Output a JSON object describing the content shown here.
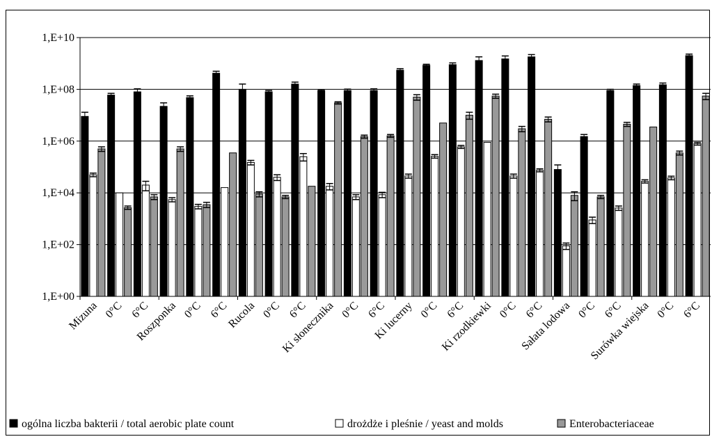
{
  "chart_data": {
    "type": "bar",
    "yscale": "log",
    "ylim": [
      1,
      10000000000
    ],
    "y_ticks": [
      "1,E+00",
      "1,E+02",
      "1,E+04",
      "1,E+06",
      "1,E+08",
      "1,E+10"
    ],
    "y_tick_values": [
      1,
      100,
      10000,
      1000000,
      100000000,
      10000000000
    ],
    "grid": "horizontal major lines",
    "legend_position": "bottom",
    "groups": [
      "Mizuna",
      "Roszponka",
      "Rucola",
      "Ki słonecznika",
      "Ki lucerny",
      "Ki rzodkiewki",
      "Sałata lodowa",
      "Surówka wiejska"
    ],
    "timepoints": [
      "",
      "0°C",
      "6°C"
    ],
    "series": [
      {
        "name": "ogólna liczba bakterii / total aerobic plate count",
        "color": "#000000",
        "values": [
          [
            9000000.0,
            60000000.0,
            80000000.0
          ],
          [
            22000000.0,
            48000000.0,
            420000000.0
          ],
          [
            100000000.0,
            80000000.0,
            160000000.0
          ],
          [
            90000000.0,
            90000000.0,
            90000000.0
          ],
          [
            550000000.0,
            850000000.0,
            900000000.0
          ],
          [
            1300000000.0,
            1500000000.0,
            1800000000.0
          ],
          [
            80000.0,
            1500000.0,
            90000000.0
          ],
          [
            140000000.0,
            150000000.0,
            2000000000.0
          ]
        ],
        "errors": [
          [
            4000000.0,
            10000000.0,
            25000000.0
          ],
          [
            8000000.0,
            8000000.0,
            80000000.0
          ],
          [
            60000000.0,
            10000000.0,
            30000000.0
          ],
          [
            8000000.0,
            12000000.0,
            15000000.0
          ],
          [
            80000000.0,
            80000000.0,
            150000000.0
          ],
          [
            500000000.0,
            450000000.0,
            400000000.0
          ],
          [
            40000.0,
            300000.0,
            10000000.0
          ],
          [
            20000000.0,
            25000000.0,
            300000000.0
          ]
        ]
      },
      {
        "name": "drożdże i pleśnie / yeast and molds",
        "color": "#ffffff",
        "values": [
          [
            50000.0,
            10000.0,
            20000.0
          ],
          [
            5500.0,
            3000.0,
            16000.0
          ],
          [
            150000.0,
            40000.0,
            250000.0
          ],
          [
            18000.0,
            7000.0,
            8500.0
          ],
          [
            45000.0,
            260000.0,
            600000.0
          ],
          [
            900000.0,
            45000.0,
            75000.0
          ],
          [
            90,
            900,
            2600.0
          ],
          [
            28000.0,
            38000.0,
            800000.0
          ]
        ],
        "errors": [
          [
            8000.0,
            0,
            8000.0
          ],
          [
            1000.0,
            600.0,
            0
          ],
          [
            30000.0,
            10000.0,
            80000.0
          ],
          [
            5000.0,
            1500.0,
            2000.0
          ],
          [
            8000.0,
            40000.0,
            80000.0
          ],
          [
            0,
            8000.0,
            10000.0
          ],
          [
            25,
            250,
            500
          ],
          [
            4000.0,
            6000.0,
            100000.0
          ]
        ]
      },
      {
        "name": "Enterobacteriaceae",
        "color": "#999999",
        "values": [
          [
            500000.0,
            2700.0,
            7000.0
          ],
          [
            500000.0,
            3500.0,
            350000.0
          ],
          [
            9000.0,
            7000.0,
            18000.0
          ],
          [
            30000000.0,
            1500000.0,
            1600000.0
          ],
          [
            50000000.0,
            5000000.0,
            10000000.0
          ],
          [
            55000000.0,
            3000000.0,
            7000000.0
          ],
          [
            8000.0,
            7000.0,
            4500000.0
          ],
          [
            3500000.0,
            350000.0,
            55000000.0
          ]
        ],
        "errors": [
          [
            100000.0,
            400.0,
            1500.0
          ],
          [
            100000.0,
            800.0,
            0
          ],
          [
            2000.0,
            1000.0,
            0
          ],
          [
            3000000.0,
            200000.0,
            200000.0
          ],
          [
            12000000.0,
            0,
            3000000.0
          ],
          [
            10000000.0,
            700000.0,
            1500000.0
          ],
          [
            3000.0,
            1000.0,
            800000.0
          ],
          [
            0,
            60000.0,
            15000000.0
          ]
        ]
      }
    ]
  },
  "legend": {
    "items": [
      {
        "label": "ogólna liczba bakterii / total aerobic plate count",
        "color": "#000000"
      },
      {
        "label": "drożdże i pleśnie / yeast and molds",
        "color": "#ffffff"
      },
      {
        "label": "Enterobacteriaceae",
        "color": "#999999"
      }
    ]
  }
}
